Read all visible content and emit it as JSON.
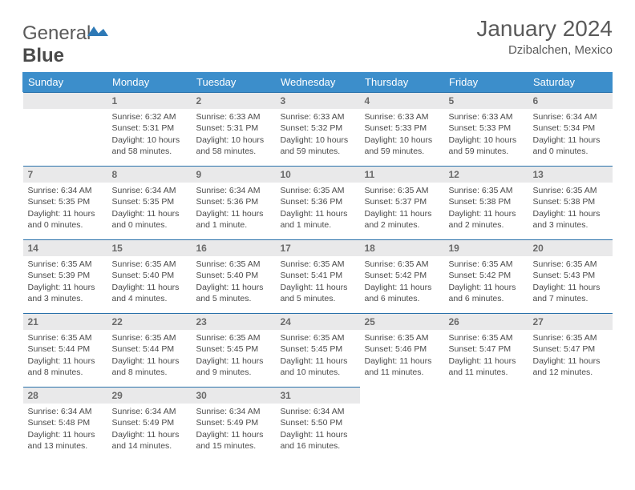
{
  "brand": {
    "word1": "General",
    "word2": "Blue"
  },
  "title": "January 2024",
  "location": "Dzibalchen, Mexico",
  "style": {
    "header_bg": "#3c8ecb",
    "header_fg": "#ffffff",
    "row_rule": "#2a71aa",
    "daynum_bg": "#e9e9ea",
    "text_color": "#4a4a4a",
    "page_bg": "#ffffff",
    "title_color": "#5a5a5a",
    "logo_mark_color": "#2e79b6"
  },
  "weekdays": [
    "Sunday",
    "Monday",
    "Tuesday",
    "Wednesday",
    "Thursday",
    "Friday",
    "Saturday"
  ],
  "first_weekday_index": 1,
  "days": [
    {
      "n": 1,
      "sunrise": "6:32 AM",
      "sunset": "5:31 PM",
      "daylight": "10 hours and 58 minutes."
    },
    {
      "n": 2,
      "sunrise": "6:33 AM",
      "sunset": "5:31 PM",
      "daylight": "10 hours and 58 minutes."
    },
    {
      "n": 3,
      "sunrise": "6:33 AM",
      "sunset": "5:32 PM",
      "daylight": "10 hours and 59 minutes."
    },
    {
      "n": 4,
      "sunrise": "6:33 AM",
      "sunset": "5:33 PM",
      "daylight": "10 hours and 59 minutes."
    },
    {
      "n": 5,
      "sunrise": "6:33 AM",
      "sunset": "5:33 PM",
      "daylight": "10 hours and 59 minutes."
    },
    {
      "n": 6,
      "sunrise": "6:34 AM",
      "sunset": "5:34 PM",
      "daylight": "11 hours and 0 minutes."
    },
    {
      "n": 7,
      "sunrise": "6:34 AM",
      "sunset": "5:35 PM",
      "daylight": "11 hours and 0 minutes."
    },
    {
      "n": 8,
      "sunrise": "6:34 AM",
      "sunset": "5:35 PM",
      "daylight": "11 hours and 0 minutes."
    },
    {
      "n": 9,
      "sunrise": "6:34 AM",
      "sunset": "5:36 PM",
      "daylight": "11 hours and 1 minute."
    },
    {
      "n": 10,
      "sunrise": "6:35 AM",
      "sunset": "5:36 PM",
      "daylight": "11 hours and 1 minute."
    },
    {
      "n": 11,
      "sunrise": "6:35 AM",
      "sunset": "5:37 PM",
      "daylight": "11 hours and 2 minutes."
    },
    {
      "n": 12,
      "sunrise": "6:35 AM",
      "sunset": "5:38 PM",
      "daylight": "11 hours and 2 minutes."
    },
    {
      "n": 13,
      "sunrise": "6:35 AM",
      "sunset": "5:38 PM",
      "daylight": "11 hours and 3 minutes."
    },
    {
      "n": 14,
      "sunrise": "6:35 AM",
      "sunset": "5:39 PM",
      "daylight": "11 hours and 3 minutes."
    },
    {
      "n": 15,
      "sunrise": "6:35 AM",
      "sunset": "5:40 PM",
      "daylight": "11 hours and 4 minutes."
    },
    {
      "n": 16,
      "sunrise": "6:35 AM",
      "sunset": "5:40 PM",
      "daylight": "11 hours and 5 minutes."
    },
    {
      "n": 17,
      "sunrise": "6:35 AM",
      "sunset": "5:41 PM",
      "daylight": "11 hours and 5 minutes."
    },
    {
      "n": 18,
      "sunrise": "6:35 AM",
      "sunset": "5:42 PM",
      "daylight": "11 hours and 6 minutes."
    },
    {
      "n": 19,
      "sunrise": "6:35 AM",
      "sunset": "5:42 PM",
      "daylight": "11 hours and 6 minutes."
    },
    {
      "n": 20,
      "sunrise": "6:35 AM",
      "sunset": "5:43 PM",
      "daylight": "11 hours and 7 minutes."
    },
    {
      "n": 21,
      "sunrise": "6:35 AM",
      "sunset": "5:44 PM",
      "daylight": "11 hours and 8 minutes."
    },
    {
      "n": 22,
      "sunrise": "6:35 AM",
      "sunset": "5:44 PM",
      "daylight": "11 hours and 8 minutes."
    },
    {
      "n": 23,
      "sunrise": "6:35 AM",
      "sunset": "5:45 PM",
      "daylight": "11 hours and 9 minutes."
    },
    {
      "n": 24,
      "sunrise": "6:35 AM",
      "sunset": "5:45 PM",
      "daylight": "11 hours and 10 minutes."
    },
    {
      "n": 25,
      "sunrise": "6:35 AM",
      "sunset": "5:46 PM",
      "daylight": "11 hours and 11 minutes."
    },
    {
      "n": 26,
      "sunrise": "6:35 AM",
      "sunset": "5:47 PM",
      "daylight": "11 hours and 11 minutes."
    },
    {
      "n": 27,
      "sunrise": "6:35 AM",
      "sunset": "5:47 PM",
      "daylight": "11 hours and 12 minutes."
    },
    {
      "n": 28,
      "sunrise": "6:34 AM",
      "sunset": "5:48 PM",
      "daylight": "11 hours and 13 minutes."
    },
    {
      "n": 29,
      "sunrise": "6:34 AM",
      "sunset": "5:49 PM",
      "daylight": "11 hours and 14 minutes."
    },
    {
      "n": 30,
      "sunrise": "6:34 AM",
      "sunset": "5:49 PM",
      "daylight": "11 hours and 15 minutes."
    },
    {
      "n": 31,
      "sunrise": "6:34 AM",
      "sunset": "5:50 PM",
      "daylight": "11 hours and 16 minutes."
    }
  ],
  "labels": {
    "sunrise": "Sunrise:",
    "sunset": "Sunset:",
    "daylight": "Daylight:"
  }
}
